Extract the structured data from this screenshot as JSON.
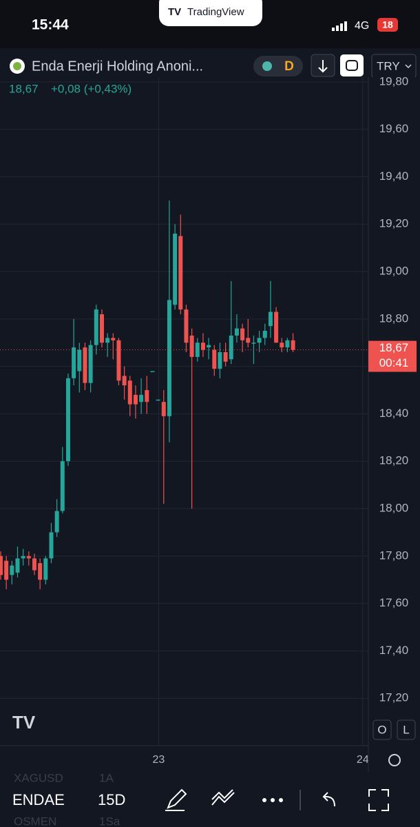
{
  "status_bar": {
    "time": "15:44",
    "network": "4G",
    "battery": "18"
  },
  "app_badge": "TradingView",
  "header": {
    "symbol": "Enda Enerji Holding Anoni...",
    "interval_badge": "D",
    "currency": "TRY",
    "price": "18,67",
    "change": "+0,08 (+0,43%)"
  },
  "chart_data": {
    "type": "candlestick",
    "categories": [
      null,
      null,
      null,
      null,
      null,
      null,
      null,
      null,
      null,
      null,
      null,
      null,
      null,
      null,
      null,
      null,
      null,
      null,
      null,
      null,
      null,
      null,
      null,
      null,
      null,
      null,
      null,
      null,
      null,
      null,
      null,
      null,
      null,
      null,
      null,
      null,
      null,
      null,
      null,
      null,
      null,
      null,
      null,
      null,
      null,
      null,
      null,
      null,
      null,
      null,
      null,
      null,
      null
    ],
    "open": [
      17.8,
      17.78,
      17.72,
      17.73,
      17.79,
      17.8,
      17.79,
      17.77,
      17.7,
      17.79,
      17.9,
      17.99,
      18.2,
      18.55,
      18.58,
      18.68,
      18.53,
      18.69,
      18.82,
      18.7,
      18.72,
      18.71,
      18.56,
      18.54,
      18.48,
      18.45,
      18.5,
      18.58,
      18.46,
      18.45,
      18.39,
      18.86,
      19.15,
      18.84,
      18.73,
      18.64,
      18.7,
      18.68,
      18.67,
      18.59,
      18.66,
      18.63,
      18.73,
      18.76,
      18.72,
      18.7,
      18.7,
      18.72,
      18.77,
      18.83,
      18.7,
      18.68,
      18.71
    ],
    "high": [
      17.82,
      17.8,
      17.78,
      17.84,
      17.83,
      17.82,
      17.81,
      17.79,
      17.8,
      17.94,
      18.04,
      18.26,
      18.57,
      18.8,
      18.7,
      18.7,
      18.71,
      18.86,
      18.84,
      18.74,
      18.74,
      18.72,
      18.6,
      18.56,
      18.52,
      18.55,
      18.56,
      18.58,
      18.46,
      18.5,
      19.3,
      19.2,
      19.24,
      18.86,
      18.76,
      18.72,
      18.74,
      18.72,
      18.69,
      18.7,
      18.7,
      18.96,
      18.82,
      18.78,
      18.8,
      18.73,
      18.75,
      18.78,
      18.96,
      18.85,
      18.72,
      18.72,
      18.74
    ],
    "low": [
      17.7,
      17.66,
      17.68,
      17.71,
      17.76,
      17.76,
      17.72,
      17.66,
      17.68,
      17.77,
      17.88,
      17.98,
      18.18,
      18.52,
      18.49,
      18.5,
      18.49,
      18.65,
      18.68,
      18.64,
      18.63,
      18.52,
      18.46,
      18.39,
      18.38,
      18.4,
      18.4,
      18.58,
      18.46,
      18.02,
      18.28,
      18.84,
      18.82,
      18.66,
      18.0,
      18.62,
      18.64,
      18.63,
      18.56,
      18.55,
      18.6,
      18.61,
      18.7,
      18.66,
      18.68,
      18.61,
      18.66,
      18.69,
      18.72,
      18.7,
      18.66,
      18.66,
      18.66
    ],
    "close": [
      17.72,
      17.7,
      17.76,
      17.79,
      17.8,
      17.79,
      17.74,
      17.7,
      17.79,
      17.9,
      17.99,
      18.2,
      18.55,
      18.68,
      18.67,
      18.53,
      18.69,
      18.84,
      18.7,
      18.72,
      18.71,
      18.54,
      18.52,
      18.44,
      18.44,
      18.48,
      18.45,
      18.58,
      18.46,
      18.39,
      18.88,
      19.16,
      18.84,
      18.7,
      18.64,
      18.7,
      18.67,
      18.69,
      18.59,
      18.66,
      18.62,
      18.73,
      18.76,
      18.71,
      18.7,
      18.7,
      18.72,
      18.75,
      18.83,
      18.7,
      18.68,
      18.71,
      18.67
    ],
    "up_color": "#26a69a",
    "down_color": "#ef5350",
    "xlim": [
      -0.12,
      65.4
    ],
    "xticks": [
      {
        "value": 28.1,
        "label": "23"
      },
      {
        "value": 64.4,
        "label": "24"
      }
    ],
    "ylim": [
      17.0,
      19.82
    ],
    "yticks": [
      {
        "value": 17.2,
        "label": "17,20"
      },
      {
        "value": 17.4,
        "label": "17,40"
      },
      {
        "value": 17.6,
        "label": "17,60"
      },
      {
        "value": 17.8,
        "label": "17,80"
      },
      {
        "value": 18.0,
        "label": "18,00"
      },
      {
        "value": 18.2,
        "label": "18,20"
      },
      {
        "value": 18.4,
        "label": "18,40"
      },
      {
        "value": 18.6,
        "label": "18,60"
      },
      {
        "value": 18.8,
        "label": "18,80"
      },
      {
        "value": 19.0,
        "label": "19,00"
      },
      {
        "value": 19.2,
        "label": "19,20"
      },
      {
        "value": 19.4,
        "label": "19,40"
      },
      {
        "value": 19.6,
        "label": "19,60"
      },
      {
        "value": 19.8,
        "label": "19,80"
      }
    ],
    "grid": true,
    "last_price": {
      "value": 18.67,
      "label": "18,67",
      "countdown": "00:41"
    }
  },
  "scale_buttons": [
    "O",
    "L"
  ],
  "bottom_bar": {
    "symbol": "ENDAE",
    "interval": "15D",
    "ghost": [
      "XAGUSD",
      "1A",
      "OSMEN",
      "1Sa"
    ]
  }
}
